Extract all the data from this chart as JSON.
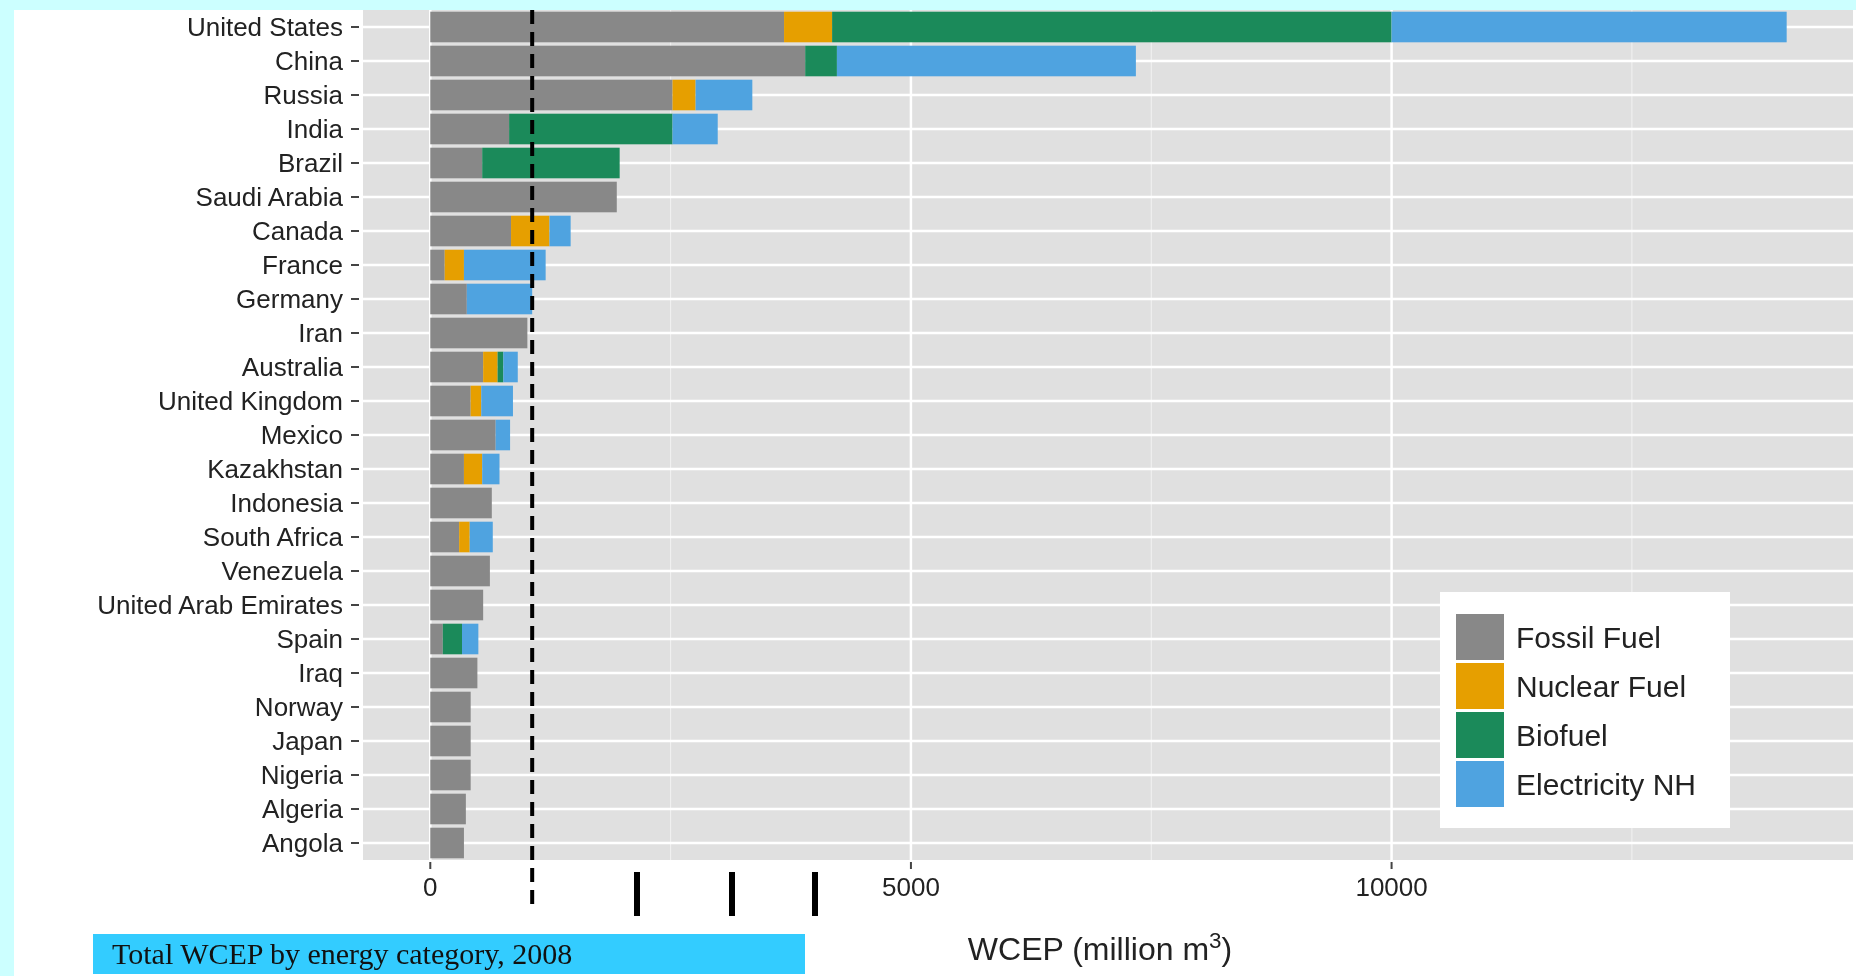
{
  "chart_data": {
    "type": "bar",
    "orientation": "horizontal",
    "stacked": true,
    "categories": [
      "United States",
      "China",
      "Russia",
      "India",
      "Brazil",
      "Saudi Arabia",
      "Canada",
      "France",
      "Germany",
      "Iran",
      "Australia",
      "United Kingdom",
      "Mexico",
      "Kazakhstan",
      "Indonesia",
      "South Africa",
      "Venezuela",
      "United Arab Emirates",
      "Spain",
      "Iraq",
      "Norway",
      "Japan",
      "Nigeria",
      "Algeria",
      "Angola"
    ],
    "series": [
      {
        "name": "Fossil Fuel",
        "color": "#888888",
        "values": [
          3680,
          3900,
          2520,
          820,
          540,
          1940,
          840,
          150,
          380,
          1010,
          550,
          420,
          680,
          350,
          640,
          300,
          620,
          550,
          130,
          490,
          420,
          420,
          420,
          370,
          350
        ]
      },
      {
        "name": "Nuclear Fuel",
        "color": "#e69f00",
        "values": [
          500,
          0,
          240,
          0,
          0,
          0,
          400,
          200,
          0,
          0,
          150,
          110,
          0,
          190,
          0,
          110,
          0,
          0,
          0,
          0,
          0,
          0,
          0,
          0,
          0
        ]
      },
      {
        "name": "Biofuel",
        "color": "#1b8a5a",
        "values": [
          5820,
          330,
          0,
          1700,
          1430,
          0,
          0,
          0,
          0,
          0,
          60,
          0,
          0,
          0,
          0,
          0,
          0,
          0,
          200,
          0,
          0,
          0,
          0,
          0,
          0
        ]
      },
      {
        "name": "Electricity NH",
        "color": "#4fa3e0",
        "values": [
          4110,
          3110,
          590,
          470,
          0,
          0,
          220,
          850,
          680,
          0,
          150,
          330,
          150,
          180,
          0,
          240,
          0,
          0,
          170,
          0,
          0,
          0,
          0,
          0,
          0
        ]
      }
    ],
    "xlim": [
      -700,
      14800
    ],
    "xticks": [
      0,
      {
        "value": 2500,
        "label": null
      },
      5000,
      {
        "value": 7500,
        "label": null
      },
      10000,
      {
        "value": 12500,
        "label": null
      }
    ],
    "xlabel": "WCEP (million m$^{3}$)",
    "grid": true,
    "legend": "bottom right",
    "ref_lines": [
      {
        "axis": "x",
        "value": 1060,
        "line_style": "dashed",
        "color": "#000000"
      }
    ],
    "annotations": [
      "Total WCEP by energy category, 2008"
    ]
  }
}
